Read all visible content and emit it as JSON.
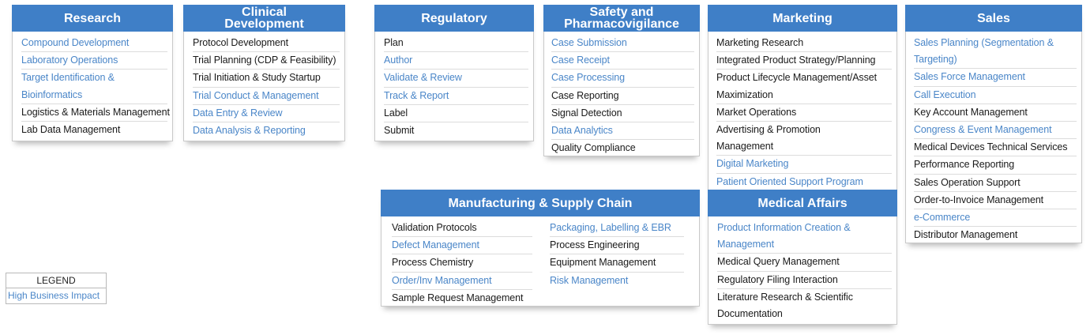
{
  "colors": {
    "header": "#3f7fc7",
    "high_impact": "#4a86c8",
    "normal": "#1a1a1a"
  },
  "research": {
    "title": [
      "Research"
    ],
    "items": [
      {
        "lines": [
          "Compound Development"
        ],
        "hi": true
      },
      {
        "lines": [
          "Laboratory Operations"
        ],
        "hi": true
      },
      {
        "lines": [
          "Target Identification &",
          "Bioinformatics"
        ],
        "hi": true
      },
      {
        "lines": [
          "Logistics & Materials Management"
        ],
        "hi": false
      },
      {
        "lines": [
          "Lab Data Management"
        ],
        "hi": false
      }
    ]
  },
  "clinical": {
    "title": [
      "Clinical",
      "Development"
    ],
    "items": [
      {
        "lines": [
          "Protocol Development"
        ],
        "hi": false
      },
      {
        "lines": [
          "Trial Planning (CDP & Feasibility)"
        ],
        "hi": false
      },
      {
        "lines": [
          "Trial Initiation & Study Startup"
        ],
        "hi": false
      },
      {
        "lines": [
          "Trial Conduct & Management"
        ],
        "hi": true
      },
      {
        "lines": [
          "Data Entry & Review"
        ],
        "hi": true
      },
      {
        "lines": [
          "Data Analysis & Reporting"
        ],
        "hi": true
      }
    ]
  },
  "regulatory": {
    "title": [
      "Regulatory"
    ],
    "items": [
      {
        "lines": [
          "Plan"
        ],
        "hi": false
      },
      {
        "lines": [
          "Author"
        ],
        "hi": true
      },
      {
        "lines": [
          "Validate & Review"
        ],
        "hi": true
      },
      {
        "lines": [
          "Track & Report"
        ],
        "hi": true
      },
      {
        "lines": [
          "Label"
        ],
        "hi": false
      },
      {
        "lines": [
          "Submit"
        ],
        "hi": false
      }
    ]
  },
  "safety": {
    "title": [
      "Safety and",
      "Pharmacovigilance"
    ],
    "items": [
      {
        "lines": [
          "Case Submission"
        ],
        "hi": true
      },
      {
        "lines": [
          "Case Receipt"
        ],
        "hi": true
      },
      {
        "lines": [
          "Case Processing"
        ],
        "hi": true
      },
      {
        "lines": [
          "Case Reporting"
        ],
        "hi": false
      },
      {
        "lines": [
          "Signal Detection"
        ],
        "hi": false
      },
      {
        "lines": [
          "Data Analytics"
        ],
        "hi": true
      },
      {
        "lines": [
          "Quality Compliance"
        ],
        "hi": false
      }
    ]
  },
  "marketing": {
    "title": [
      "Marketing"
    ],
    "items": [
      {
        "lines": [
          "Marketing Research"
        ],
        "hi": false
      },
      {
        "lines": [
          "Integrated Product Strategy/Planning"
        ],
        "hi": false
      },
      {
        "lines": [
          "Product Lifecycle Management/Asset",
          "Maximization"
        ],
        "hi": false
      },
      {
        "lines": [
          "Market Operations"
        ],
        "hi": false
      },
      {
        "lines": [
          "Advertising & Promotion",
          "Management"
        ],
        "hi": false
      },
      {
        "lines": [
          "Digital Marketing"
        ],
        "hi": true
      },
      {
        "lines": [
          "Patient Oriented Support Program"
        ],
        "hi": true
      }
    ]
  },
  "sales": {
    "title": [
      "Sales"
    ],
    "items": [
      {
        "lines": [
          "Sales Planning (Segmentation &",
          "Targeting)"
        ],
        "hi": true
      },
      {
        "lines": [
          "Sales Force Management"
        ],
        "hi": true
      },
      {
        "lines": [
          "Call Execution"
        ],
        "hi": true
      },
      {
        "lines": [
          "Key Account Management"
        ],
        "hi": false
      },
      {
        "lines": [
          "Congress & Event Management"
        ],
        "hi": true
      },
      {
        "lines": [
          "Medical Devices Technical Services"
        ],
        "hi": false
      },
      {
        "lines": [
          "Performance Reporting"
        ],
        "hi": false
      },
      {
        "lines": [
          "Sales Operation Support"
        ],
        "hi": false
      },
      {
        "lines": [
          "Order-to-Invoice Management"
        ],
        "hi": false
      },
      {
        "lines": [
          "e-Commerce"
        ],
        "hi": true
      },
      {
        "lines": [
          "Distributor Management"
        ],
        "hi": false
      }
    ]
  },
  "mfg": {
    "title": [
      "Manufacturing & Supply Chain"
    ],
    "col1": [
      {
        "lines": [
          "Validation Protocols"
        ],
        "hi": false
      },
      {
        "lines": [
          "Defect Management"
        ],
        "hi": true
      },
      {
        "lines": [
          "Process Chemistry"
        ],
        "hi": false
      },
      {
        "lines": [
          "Order/Inv Management"
        ],
        "hi": true
      },
      {
        "lines": [
          "Sample Request Management"
        ],
        "hi": false
      }
    ],
    "col2": [
      {
        "lines": [
          "Packaging, Labelling & EBR"
        ],
        "hi": true
      },
      {
        "lines": [
          "Process Engineering"
        ],
        "hi": false
      },
      {
        "lines": [
          "Equipment Management"
        ],
        "hi": false
      },
      {
        "lines": [
          "Risk Management"
        ],
        "hi": true
      }
    ]
  },
  "medical": {
    "title": [
      "Medical Affairs"
    ],
    "items": [
      {
        "lines": [
          "Product Information Creation &",
          "Management"
        ],
        "hi": true
      },
      {
        "lines": [
          "Medical Query Management"
        ],
        "hi": false
      },
      {
        "lines": [
          "Regulatory Filing Interaction"
        ],
        "hi": false
      },
      {
        "lines": [
          "Literature Research & Scientific",
          "Documentation"
        ],
        "hi": false
      }
    ]
  },
  "legend": {
    "title": "LEGEND",
    "high_impact": "High Business Impact"
  }
}
